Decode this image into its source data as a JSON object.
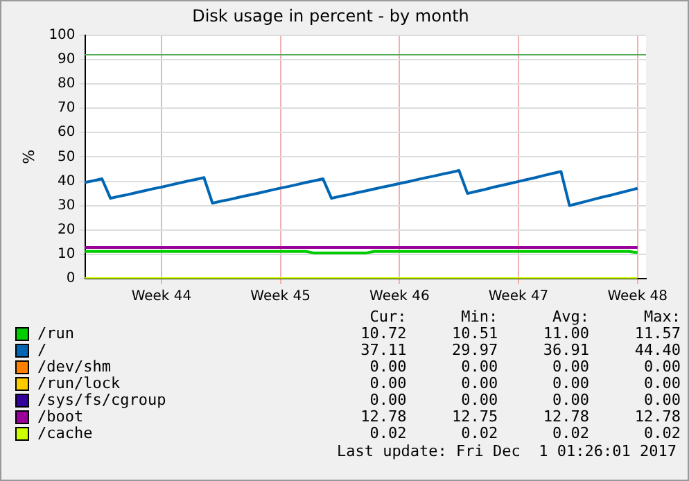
{
  "chart_data": {
    "type": "line",
    "title": "Disk usage in percent - by month",
    "ylabel": "%",
    "categories": [
      null,
      null,
      null,
      null,
      null,
      null,
      null,
      null,
      null,
      "Week 44",
      null,
      null,
      null,
      null,
      null,
      null,
      null,
      null,
      null,
      null,
      null,
      null,
      null,
      "Week 45",
      null,
      null,
      null,
      null,
      null,
      null,
      null,
      null,
      null,
      null,
      null,
      null,
      null,
      "Week 46",
      null,
      null,
      null,
      null,
      null,
      null,
      null,
      null,
      null,
      null,
      null,
      null,
      null,
      "Week 47",
      null,
      null,
      null,
      null,
      null,
      null,
      null,
      null,
      null,
      null,
      null,
      null,
      null,
      "Week 48",
      null
    ],
    "ylim": [
      0,
      100
    ],
    "yticks": [
      0,
      10,
      20,
      30,
      40,
      50,
      60,
      70,
      80,
      90,
      100
    ],
    "grid": true,
    "legend": "bottom",
    "marker": "none",
    "line_style": "solid",
    "ref_lines": [
      {
        "axis": "y",
        "value": 92,
        "color": "#55aa55"
      }
    ],
    "series": [
      {
        "name": "/run",
        "color": "#00cc00",
        "values": [
          11.2,
          11.2,
          11.2,
          11.2,
          11.2,
          11.2,
          11.2,
          11.2,
          11.2,
          11.2,
          11.2,
          11.2,
          11.2,
          11.2,
          11.2,
          11.2,
          11.2,
          11.2,
          11.2,
          11.2,
          11.2,
          11.2,
          11.2,
          11.2,
          11.2,
          11.2,
          11.2,
          10.5,
          10.5,
          10.5,
          10.5,
          10.5,
          10.5,
          10.5,
          11.2,
          11.2,
          11.2,
          11.2,
          11.2,
          11.2,
          11.2,
          11.2,
          11.2,
          11.2,
          11.2,
          11.2,
          11.2,
          11.2,
          11.2,
          11.2,
          11.2,
          11.2,
          11.2,
          11.2,
          11.2,
          11.2,
          11.2,
          11.2,
          11.2,
          11.2,
          11.2,
          11.2,
          11.2,
          11.2,
          11.2,
          10.7,
          null
        ]
      },
      {
        "name": "/",
        "color": "#0066b3",
        "values": [
          39.5,
          40.2,
          41,
          33,
          33.8,
          34.5,
          35.3,
          36.1,
          36.9,
          37.6,
          38.4,
          39.2,
          40,
          40.7,
          41.5,
          31,
          31.8,
          32.5,
          33.3,
          34.1,
          34.8,
          35.6,
          36.4,
          37.2,
          37.9,
          38.7,
          39.5,
          40.2,
          41,
          33,
          33.8,
          34.5,
          35.3,
          36,
          36.8,
          37.6,
          38.3,
          39.1,
          39.8,
          40.6,
          41.4,
          42.1,
          42.9,
          43.6,
          44.4,
          35,
          35.8,
          36.6,
          37.5,
          38.3,
          39.1,
          39.9,
          40.7,
          41.5,
          42.4,
          43.2,
          44,
          30,
          30.9,
          31.8,
          32.7,
          33.6,
          34.4,
          35.3,
          36.2,
          37.1,
          null
        ]
      },
      {
        "name": "/dev/shm",
        "color": "#ff8000",
        "values": [
          null,
          null,
          null,
          null,
          null,
          null,
          null,
          null,
          null,
          null,
          null,
          null,
          null,
          null,
          null,
          null,
          null,
          null,
          null,
          null,
          null,
          null,
          null,
          null,
          null,
          null,
          null,
          null,
          null,
          null,
          null,
          null,
          null,
          null,
          null,
          null,
          null,
          null,
          null,
          null,
          null,
          null,
          null,
          null,
          null,
          null,
          null,
          null,
          null,
          null,
          null,
          null,
          null,
          null,
          null,
          null,
          null,
          null,
          null,
          null,
          null,
          null,
          null,
          null,
          null,
          null,
          null
        ]
      },
      {
        "name": "/run/lock",
        "color": "#ffcc00",
        "values": [
          null,
          null,
          null,
          null,
          null,
          null,
          null,
          null,
          null,
          null,
          null,
          null,
          null,
          null,
          null,
          null,
          null,
          null,
          null,
          null,
          null,
          null,
          null,
          null,
          null,
          null,
          null,
          null,
          null,
          null,
          null,
          null,
          null,
          null,
          null,
          null,
          null,
          null,
          null,
          null,
          null,
          null,
          null,
          null,
          null,
          null,
          null,
          null,
          null,
          null,
          null,
          null,
          null,
          null,
          null,
          null,
          null,
          null,
          null,
          null,
          null,
          null,
          null,
          null,
          null,
          null,
          null
        ]
      },
      {
        "name": "/sys/fs/cgroup",
        "color": "#330099",
        "values": [
          null,
          null,
          null,
          null,
          null,
          null,
          null,
          null,
          null,
          null,
          null,
          null,
          null,
          null,
          null,
          null,
          null,
          null,
          null,
          null,
          null,
          null,
          null,
          null,
          null,
          null,
          null,
          null,
          null,
          null,
          null,
          null,
          null,
          null,
          null,
          null,
          null,
          null,
          null,
          null,
          null,
          null,
          null,
          null,
          null,
          null,
          null,
          null,
          null,
          null,
          null,
          null,
          null,
          null,
          null,
          null,
          null,
          null,
          null,
          null,
          null,
          null,
          null,
          null,
          null,
          null,
          null
        ]
      },
      {
        "name": "/boot",
        "color": "#990099",
        "values": [
          12.8,
          12.8,
          12.8,
          12.8,
          12.8,
          12.8,
          12.8,
          12.8,
          12.8,
          12.8,
          12.8,
          12.8,
          12.8,
          12.8,
          12.8,
          12.8,
          12.8,
          12.8,
          12.8,
          12.8,
          12.8,
          12.8,
          12.8,
          12.8,
          12.8,
          12.8,
          12.8,
          12.8,
          12.8,
          12.8,
          12.8,
          12.8,
          12.8,
          12.8,
          12.8,
          12.8,
          12.8,
          12.8,
          12.8,
          12.8,
          12.8,
          12.8,
          12.8,
          12.8,
          12.8,
          12.8,
          12.8,
          12.8,
          12.8,
          12.8,
          12.8,
          12.8,
          12.8,
          12.8,
          12.8,
          12.8,
          12.8,
          12.8,
          12.8,
          12.8,
          12.8,
          12.8,
          12.8,
          12.8,
          12.8,
          12.8,
          null
        ]
      },
      {
        "name": "/cache",
        "color": "#ccff00",
        "values": [
          0,
          0,
          0,
          0,
          0,
          0,
          0,
          0,
          0,
          0,
          0,
          0,
          0,
          0,
          0,
          0,
          0,
          0,
          0,
          0,
          0,
          0,
          0,
          0,
          0,
          0,
          0,
          0,
          0,
          0,
          0,
          0,
          0,
          0,
          0,
          0,
          0,
          0,
          0,
          0,
          0,
          0,
          0,
          0,
          0,
          0,
          0,
          0,
          0,
          0,
          0,
          0,
          0,
          0,
          0,
          0,
          0,
          0,
          0,
          0,
          0,
          0,
          0,
          0,
          0,
          0,
          null
        ]
      }
    ],
    "annotations": [
      "Cur:",
      "Min:",
      "Avg:",
      "Max:",
      "10.72",
      "10.51",
      "11.00",
      "11.57",
      "37.11",
      "29.97",
      "36.91",
      "44.40",
      "0.00",
      "0.00",
      "0.00",
      "0.00",
      "0.00",
      "0.00",
      "0.00",
      "0.00",
      "0.00",
      "0.00",
      "0.00",
      "0.00",
      "12.78",
      "12.75",
      "12.78",
      "12.78",
      "0.02",
      "0.02",
      "0.02",
      "0.02",
      "Last update: Fri Dec  1 01:26:01 2017"
    ]
  }
}
